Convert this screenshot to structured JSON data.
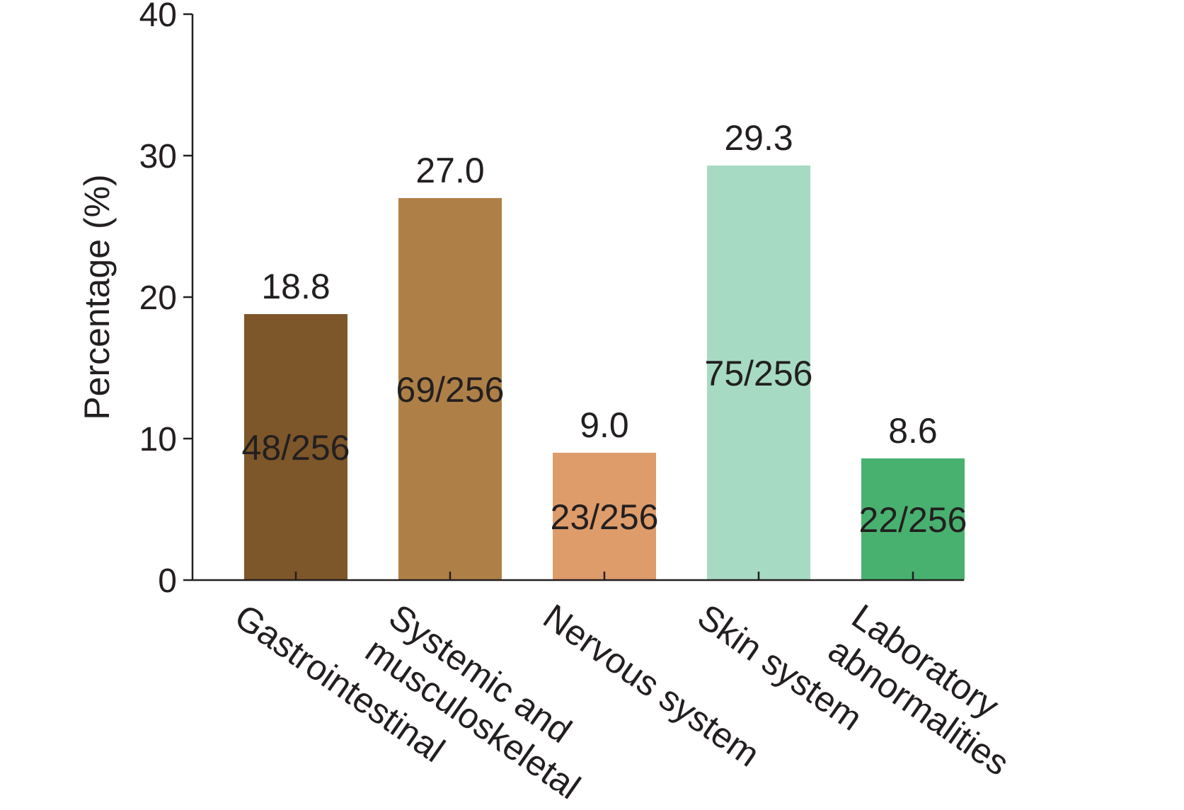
{
  "chart_data": {
    "type": "bar",
    "categories": [
      [
        "Gastrointestinal"
      ],
      [
        "Systemic and",
        "musculoskeletal"
      ],
      [
        "Nervous system"
      ],
      [
        "Skin system"
      ],
      [
        "Laboratory",
        "abnormalities"
      ]
    ],
    "values": [
      18.8,
      27.0,
      9.0,
      29.3,
      8.6
    ],
    "value_labels": [
      "18.8",
      "27.0",
      "9.0",
      "29.3",
      "8.6"
    ],
    "count_labels": [
      "48/256",
      "69/256",
      "23/256",
      "75/256",
      "22/256"
    ],
    "colors": [
      "#7d5629",
      "#ae8047",
      "#de9c6b",
      "#a7dac3",
      "#48b16f"
    ],
    "ylabel": "Percentage (%)",
    "xlabel": "",
    "title": "",
    "ylim": [
      0,
      40
    ],
    "yticks": [
      0,
      10,
      20,
      30,
      40
    ],
    "grid": false,
    "legend": "none"
  }
}
